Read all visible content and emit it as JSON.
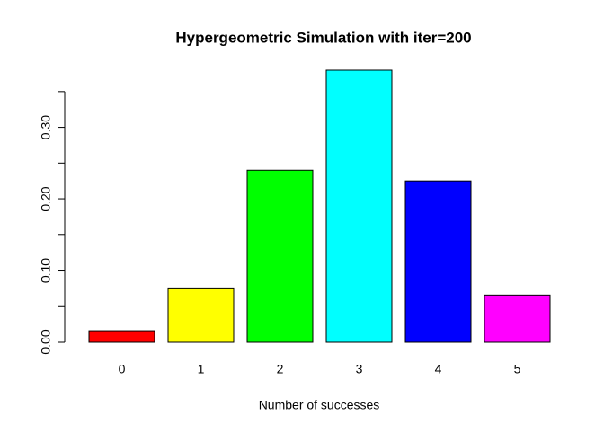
{
  "chart_data": {
    "type": "bar",
    "title": "Hypergeometric Simulation with iter=200",
    "x_label": "Number of successes",
    "categories": [
      "0",
      "1",
      "2",
      "3",
      "4",
      "5"
    ],
    "values": [
      0.015,
      0.075,
      0.24,
      0.38,
      0.225,
      0.065
    ],
    "colors": [
      "#ff0000",
      "#ffff00",
      "#00ff00",
      "#00ffff",
      "#0000ff",
      "#ff00ff"
    ],
    "ylim": [
      0,
      0.38
    ],
    "yticks": [
      {
        "value": 0,
        "label": "0.00"
      },
      {
        "value": 0.1,
        "label": "0.10"
      },
      {
        "value": 0.2,
        "label": "0.20"
      },
      {
        "value": 0.3,
        "label": "0.30"
      }
    ],
    "yminor_ticks": [
      0.05,
      0.15,
      0.25,
      0.35
    ]
  }
}
